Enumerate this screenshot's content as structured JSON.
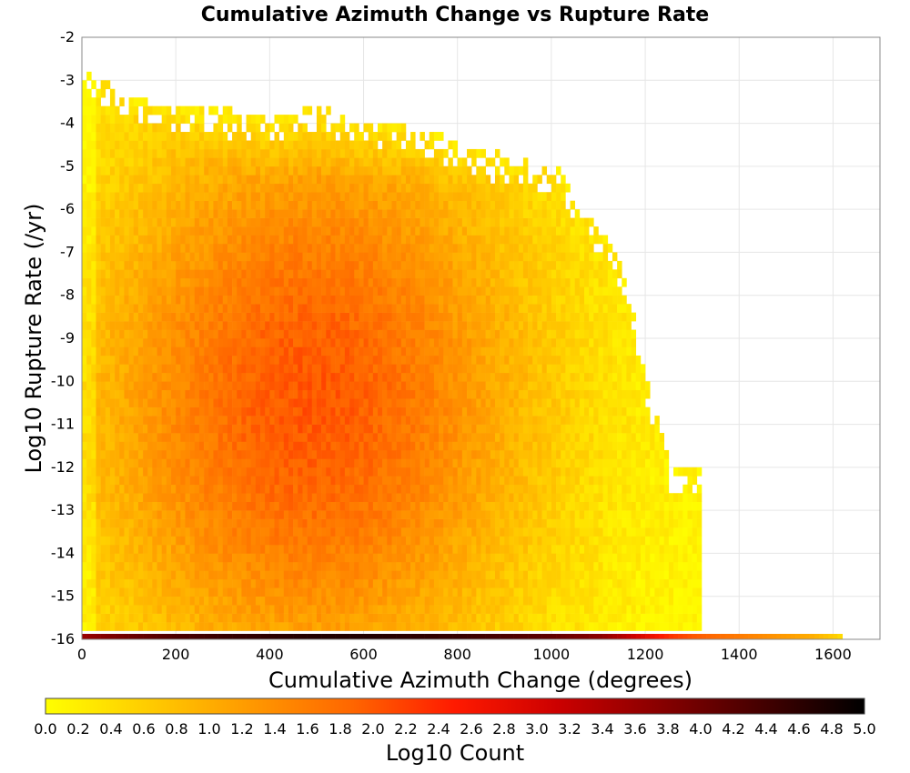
{
  "chart_data": {
    "type": "heatmap",
    "title": "Cumulative Azimuth Change vs Rupture Rate",
    "xlabel": "Cumulative Azimuth Change (degrees)",
    "ylabel": "Log10 Rupture Rate (/yr)",
    "xlim": [
      0,
      1700
    ],
    "ylim": [
      -16,
      -2
    ],
    "xticks": [
      "0",
      "200",
      "400",
      "600",
      "800",
      "1000",
      "1200",
      "1400",
      "1600"
    ],
    "yticks": [
      "-2",
      "-3",
      "-4",
      "-5",
      "-6",
      "-7",
      "-8",
      "-9",
      "-10",
      "-11",
      "-12",
      "-13",
      "-14",
      "-15",
      "-16"
    ],
    "grid": true,
    "bin_width_x": 10,
    "bin_height_y": 0.2,
    "colorbar": {
      "label": "Log10 Count",
      "range": [
        0.0,
        5.0
      ],
      "ticks": [
        "0.0",
        "0.2",
        "0.4",
        "0.6",
        "0.8",
        "1.0",
        "1.2",
        "1.4",
        "1.6",
        "1.8",
        "2.0",
        "2.2",
        "2.4",
        "2.6",
        "2.8",
        "3.0",
        "3.2",
        "3.4",
        "3.6",
        "3.8",
        "4.0",
        "4.2",
        "4.4",
        "4.6",
        "4.8",
        "5.0"
      ],
      "colors": [
        "#ffff00",
        "#ffcc00",
        "#ff9900",
        "#ff6600",
        "#ff1a00",
        "#cc0000",
        "#880000",
        "#440000",
        "#000000"
      ]
    },
    "envelope": {
      "description_points_x": [
        0,
        100,
        200,
        300,
        400,
        500,
        600,
        700,
        800,
        900,
        1000,
        1100,
        1150,
        1200,
        1250
      ],
      "upper_log_rate": [
        -2.7,
        -3.4,
        -3.6,
        -3.7,
        -3.8,
        -3.6,
        -3.9,
        -4.0,
        -4.5,
        -4.8,
        -5.0,
        -6.5,
        -7.5,
        -10.0,
        -12.0
      ]
    },
    "core_peak": {
      "x": 480,
      "log_rate": -10.5,
      "log10_count": 2.0
    },
    "bottom_row": {
      "log_rate": -16,
      "x": [
        0,
        100,
        200,
        300,
        400,
        500,
        600,
        700,
        800,
        900,
        1000,
        1100,
        1150,
        1200,
        1250,
        1300,
        1350,
        1400,
        1450,
        1500,
        1550,
        1600,
        1620
      ],
      "log10_count": [
        3.6,
        4.0,
        4.3,
        4.5,
        4.6,
        4.7,
        4.7,
        4.6,
        4.5,
        4.3,
        4.1,
        3.7,
        3.3,
        2.8,
        2.3,
        2.0,
        1.8,
        1.6,
        1.4,
        1.2,
        1.0,
        0.6,
        0.3
      ]
    }
  }
}
